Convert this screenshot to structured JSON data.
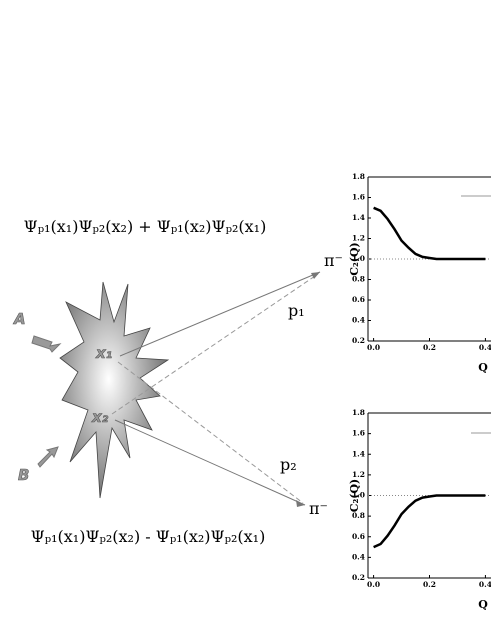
{
  "diagram": {
    "formula_top": "Ψₚ₁(x₁)Ψₚ₂(x₂) + Ψₚ₁(x₂)Ψₚ₂(x₁)",
    "formula_bottom": "Ψₚ₁(x₁)Ψₚ₂(x₂) - Ψₚ₁(x₂)Ψₚ₂(x₁)",
    "beam_a": "A",
    "beam_b": "B",
    "point_1": "x₁",
    "point_2": "x₂",
    "pion_top": "π⁻",
    "pion_bottom": "π⁻",
    "momentum_1": "p₁",
    "momentum_2": "p₂"
  },
  "chart_data": [
    {
      "type": "line",
      "x_label": "Q",
      "y_label": "C₂(Q)",
      "x": [
        0,
        0.025,
        0.05,
        0.075,
        0.1,
        0.125,
        0.15,
        0.175,
        0.2,
        0.225,
        0.25,
        0.275,
        0.3,
        0.325,
        0.35,
        0.375,
        0.4
      ],
      "series": [
        {
          "color": "#000000",
          "values": [
            1.5,
            1.47,
            1.39,
            1.29,
            1.18,
            1.11,
            1.05,
            1.02,
            1.01,
            1.0,
            1.0,
            1.0,
            1.0,
            1.0,
            1.0,
            1.0,
            1.0
          ]
        }
      ],
      "reference_line": 1,
      "xlim": [
        -0.02,
        0.42
      ],
      "ylim": [
        0.2,
        1.8
      ],
      "xticks": [
        {
          "value": 0,
          "label": "0.0"
        },
        0.2,
        0.4
      ],
      "yticks": [
        0.2,
        0.4,
        0.6,
        0.8,
        {
          "value": 1,
          "label": "1.0"
        },
        1.2,
        1.4,
        1.6,
        1.8
      ]
    },
    {
      "type": "line",
      "x_label": "Q",
      "y_label": "C₂(Q)",
      "x": [
        0,
        0.025,
        0.05,
        0.075,
        0.1,
        0.125,
        0.15,
        0.175,
        0.2,
        0.225,
        0.25,
        0.275,
        0.3,
        0.325,
        0.35,
        0.375,
        0.4
      ],
      "series": [
        {
          "color": "#000000",
          "values": [
            0.5,
            0.53,
            0.61,
            0.71,
            0.82,
            0.89,
            0.95,
            0.98,
            0.99,
            1.0,
            1.0,
            1.0,
            1.0,
            1.0,
            1.0,
            1.0,
            1.0
          ]
        }
      ],
      "reference_line": 1,
      "xlim": [
        -0.02,
        0.42
      ],
      "ylim": [
        0.2,
        1.8
      ],
      "xticks": [
        {
          "value": 0,
          "label": "0.0"
        },
        0.2,
        0.4
      ],
      "yticks": [
        0.2,
        0.4,
        0.6,
        0.8,
        {
          "value": 1,
          "label": "1.0"
        },
        1.2,
        1.4,
        1.6,
        1.8
      ]
    }
  ]
}
